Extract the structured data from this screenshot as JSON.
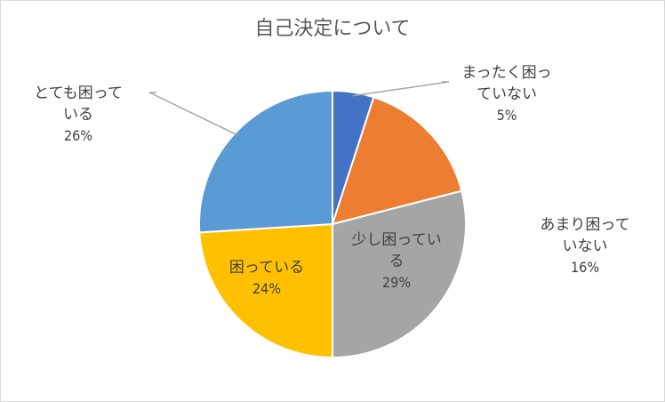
{
  "chart_data": {
    "type": "pie",
    "title": "自己決定について",
    "slices": [
      {
        "label_lines": [
          "まったく困っ",
          "ていない"
        ],
        "percent": "5%",
        "value": 5,
        "color": "#4472C4"
      },
      {
        "label_lines": [
          "あまり困って",
          "いない"
        ],
        "percent": "16%",
        "value": 16,
        "color": "#ED7D31"
      },
      {
        "label_lines": [
          "少し困ってい",
          "る"
        ],
        "percent": "29%",
        "value": 29,
        "color": "#A5A5A5"
      },
      {
        "label_lines": [
          "困っている"
        ],
        "percent": "24%",
        "value": 24,
        "color": "#FFC000"
      },
      {
        "label_lines": [
          "とても困って",
          "いる"
        ],
        "percent": "26%",
        "value": 26,
        "color": "#5B9BD5"
      }
    ],
    "legend": "none"
  }
}
